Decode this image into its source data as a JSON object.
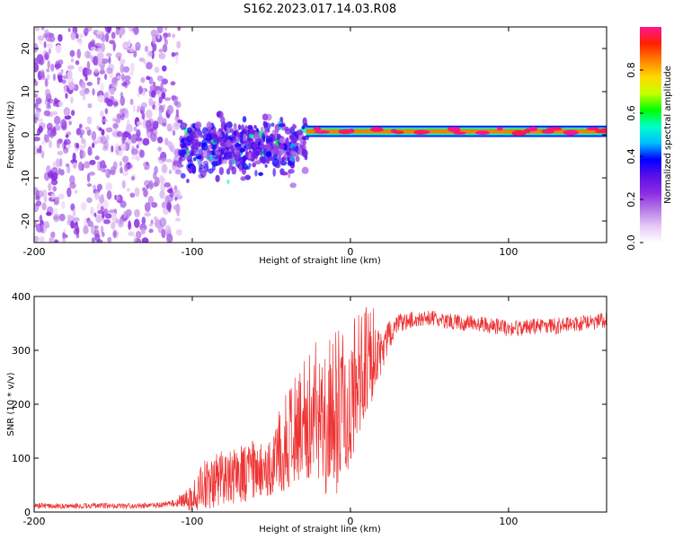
{
  "chart_data": [
    {
      "type": "heatmap",
      "title": "S162.2023.017.14.03.R08",
      "xlabel": "Height of straight line (km)",
      "ylabel": "Frequency (Hz)",
      "xlim": [
        -200,
        162
      ],
      "ylim": [
        -25,
        25
      ],
      "xticks": [
        -200,
        -100,
        0,
        100
      ],
      "yticks": [
        -20,
        -10,
        0,
        10,
        20
      ],
      "xticklabels": [
        "-200",
        "-100",
        "0",
        "100"
      ],
      "yticklabels": [
        "-20",
        "-10",
        "0",
        "10",
        "20"
      ],
      "colorbar": {
        "label": "Normalized spectral amplitude",
        "range": [
          0,
          1
        ],
        "ticks": [
          0.0,
          0.2,
          0.4,
          0.6,
          0.8
        ],
        "ticklabels": [
          "0.0",
          "0.2",
          "0.4",
          "0.6",
          "0.8"
        ],
        "colormap": [
          "#ffffff",
          "#e6c8f5",
          "#b57ae6",
          "#8a2be2",
          "#5a10e8",
          "#0000ff",
          "#00bfff",
          "#00ffc8",
          "#00ff00",
          "#c8ff00",
          "#ffd700",
          "#ff8000",
          "#ff2000",
          "#ff1493"
        ]
      },
      "regions": [
        {
          "name": "noise",
          "x": [
            -200,
            -108
          ],
          "freq_spread": 25,
          "amplitude": [
            0.05,
            0.25
          ]
        },
        {
          "name": "transition",
          "x": [
            -108,
            -28
          ],
          "freq_center": -3,
          "freq_spread": 12,
          "amplitude": [
            0.15,
            0.4
          ]
        },
        {
          "name": "signal",
          "x": [
            -28,
            162
          ],
          "freq_center": 0.8,
          "freq_spread": 1.2,
          "amplitude": [
            0.8,
            1.0
          ]
        }
      ]
    },
    {
      "type": "line",
      "xlabel": "Height of straight line (km)",
      "ylabel": "SNR (10 * v/v)",
      "xlim": [
        -200,
        162
      ],
      "ylim": [
        0,
        400
      ],
      "xticks": [
        -200,
        -100,
        0,
        100
      ],
      "yticks": [
        0,
        100,
        200,
        300,
        400
      ],
      "xticklabels": [
        "-200",
        "-100",
        "0",
        "100"
      ],
      "yticklabels": [
        "0",
        "100",
        "200",
        "300",
        "400"
      ],
      "color": "#ee3333",
      "series": [
        {
          "name": "SNR",
          "x": [
            -200,
            -180,
            -160,
            -140,
            -120,
            -110,
            -100,
            -90,
            -80,
            -70,
            -60,
            -50,
            -40,
            -30,
            -25,
            -20,
            -15,
            -10,
            -5,
            0,
            5,
            10,
            15,
            20,
            25,
            30,
            40,
            50,
            60,
            70,
            80,
            90,
            100,
            110,
            120,
            130,
            140,
            150,
            162
          ],
          "values": [
            12,
            11,
            12,
            11,
            13,
            18,
            30,
            55,
            65,
            70,
            80,
            90,
            110,
            140,
            160,
            180,
            160,
            150,
            170,
            200,
            230,
            250,
            280,
            300,
            330,
            350,
            358,
            360,
            355,
            352,
            350,
            345,
            340,
            342,
            345,
            345,
            348,
            352,
            356
          ],
          "spread": [
            5,
            5,
            5,
            5,
            5,
            8,
            30,
            50,
            50,
            55,
            55,
            60,
            70,
            90,
            110,
            120,
            130,
            130,
            120,
            110,
            100,
            90,
            60,
            40,
            25,
            18,
            15,
            15,
            15,
            15,
            15,
            15,
            15,
            15,
            15,
            15,
            15,
            15,
            15
          ]
        }
      ]
    }
  ]
}
